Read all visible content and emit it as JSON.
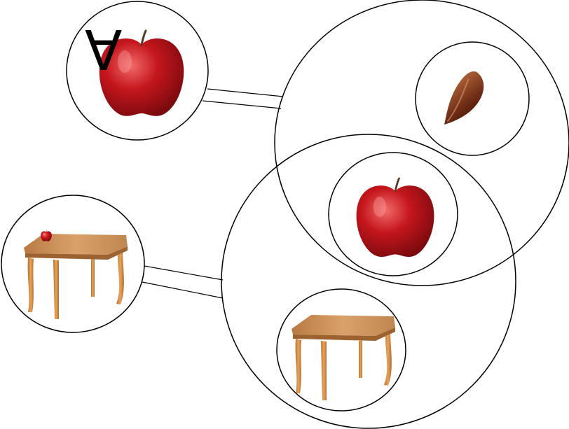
{
  "diagram": {
    "quantifier_symbol": "∀",
    "colors": {
      "line": "#000000",
      "apple_red": "#c4161c",
      "apple_dark": "#7a0a0e",
      "apple_highlight": "#f26a6a",
      "stem": "#5a3a1e",
      "seed": "#6b2a14",
      "seed_light": "#b86a3c",
      "table_top": "#c98d52",
      "table_edge": "#a56a32",
      "table_leg": "#d0873e",
      "background": "#ffffff"
    },
    "icons": [
      "apple-icon",
      "seed-icon",
      "table-icon"
    ]
  }
}
